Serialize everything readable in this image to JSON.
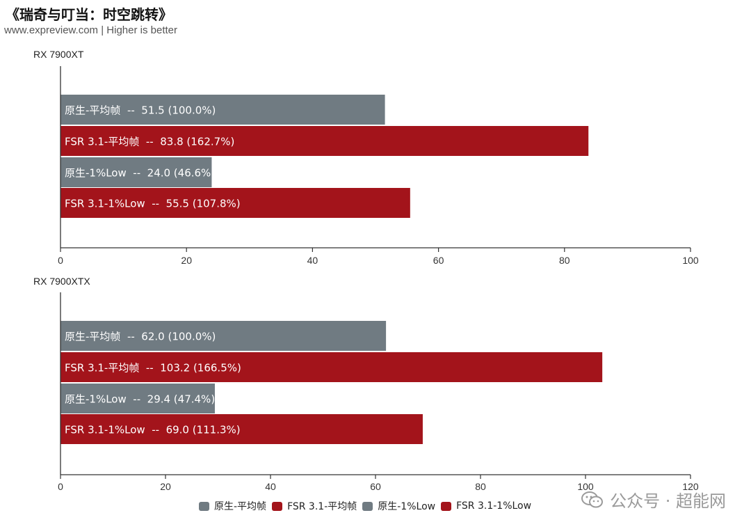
{
  "title": "《瑞奇与叮当：时空跳转》",
  "subtitle": "www.expreview.com | Higher is better",
  "colors": {
    "gray": "#707b82",
    "red": "#a3141b",
    "axis": "#333333"
  },
  "legend": [
    {
      "label": "原生-平均帧",
      "color": "#707b82"
    },
    {
      "label": "FSR 3.1-平均帧",
      "color": "#a3141b"
    },
    {
      "label": "原生-1%Low",
      "color": "#707b82"
    },
    {
      "label": "FSR 3.1-1%Low",
      "color": "#a3141b"
    }
  ],
  "watermark": {
    "text": "公众号 · 超能网",
    "icon": "wechat-icon"
  },
  "chart_data": [
    {
      "type": "bar",
      "orientation": "horizontal",
      "title": "RX 7900XT",
      "categories": [
        "原生-平均帧",
        "FSR 3.1-平均帧",
        "原生-1%Low",
        "FSR 3.1-1%Low"
      ],
      "values": [
        51.5,
        83.8,
        24.0,
        55.5
      ],
      "labels": [
        "原生-平均帧  --  51.5 (100.0%)",
        "FSR 3.1-平均帧  --  83.8 (162.7%)",
        "原生-1%Low  --  24.0 (46.6%)",
        "FSR 3.1-1%Low  --  55.5 (107.8%)"
      ],
      "bar_colors": [
        "#707b82",
        "#a3141b",
        "#707b82",
        "#a3141b"
      ],
      "xlim": [
        0,
        100
      ],
      "ticks": [
        0,
        20,
        40,
        60,
        80,
        100
      ],
      "grid": false
    },
    {
      "type": "bar",
      "orientation": "horizontal",
      "title": "RX 7900XTX",
      "categories": [
        "原生-平均帧",
        "FSR 3.1-平均帧",
        "原生-1%Low",
        "FSR 3.1-1%Low"
      ],
      "values": [
        62.0,
        103.2,
        29.4,
        69.0
      ],
      "labels": [
        "原生-平均帧  --  62.0 (100.0%)",
        "FSR 3.1-平均帧  --  103.2 (166.5%)",
        "原生-1%Low  --  29.4 (47.4%)",
        "FSR 3.1-1%Low  --  69.0 (111.3%)"
      ],
      "bar_colors": [
        "#707b82",
        "#a3141b",
        "#707b82",
        "#a3141b"
      ],
      "xlim": [
        0,
        120
      ],
      "ticks": [
        0,
        20,
        40,
        60,
        80,
        100,
        120
      ],
      "grid": false
    }
  ]
}
